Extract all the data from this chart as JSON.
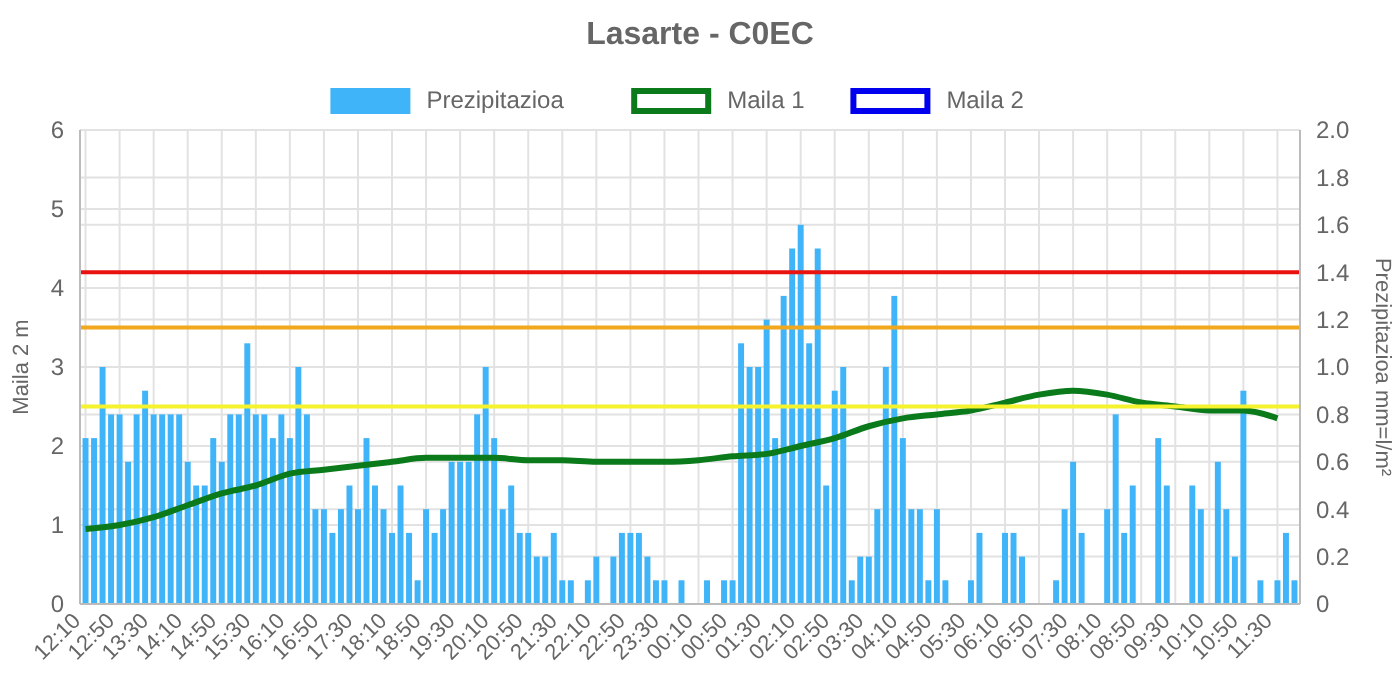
{
  "chart_data": {
    "type": "bar",
    "title": "Lasarte - C0EC",
    "categories": [
      "12:10",
      null,
      null,
      null,
      "12:50",
      null,
      null,
      null,
      "13:30",
      null,
      null,
      null,
      "14:10",
      null,
      null,
      null,
      "14:50",
      null,
      null,
      null,
      "15:30",
      null,
      null,
      null,
      "16:10",
      null,
      null,
      null,
      "16:50",
      null,
      null,
      null,
      "17:30",
      null,
      null,
      null,
      "18:10",
      null,
      null,
      null,
      "18:50",
      null,
      null,
      null,
      "19:30",
      null,
      null,
      null,
      "20:10",
      null,
      null,
      null,
      "20:50",
      null,
      null,
      null,
      "21:30",
      null,
      null,
      null,
      "22:10",
      null,
      null,
      null,
      "22:50",
      null,
      null,
      null,
      "23:30",
      null,
      null,
      null,
      "00:10",
      null,
      null,
      null,
      "00:50",
      null,
      null,
      null,
      "01:30",
      null,
      null,
      null,
      "02:10",
      null,
      null,
      null,
      "02:50",
      null,
      null,
      null,
      "03:30",
      null,
      null,
      null,
      "04:10",
      null,
      null,
      null,
      "04:50",
      null,
      null,
      null,
      "05:30",
      null,
      null,
      null,
      "06:10",
      null,
      null,
      null,
      "06:50",
      null,
      null,
      null,
      "07:30",
      null,
      null,
      null,
      "08:10",
      null,
      null,
      null,
      "08:50",
      null,
      null,
      null,
      "09:30",
      null,
      null,
      null,
      "10:10",
      null,
      null,
      null,
      "10:50",
      null,
      null,
      null,
      "11:30",
      null,
      null
    ],
    "series": [
      {
        "name": "Prezipitazioa",
        "axis": "y2",
        "color": "#40b4f8",
        "values": [
          0.7,
          0.7,
          1.0,
          0.8,
          0.8,
          0.6,
          0.8,
          0.9,
          0.8,
          0.8,
          0.8,
          0.8,
          0.6,
          0.5,
          0.5,
          0.7,
          0.6,
          0.8,
          0.8,
          1.1,
          0.8,
          0.8,
          0.7,
          0.8,
          0.7,
          1.0,
          0.8,
          0.4,
          0.4,
          0.3,
          0.4,
          0.5,
          0.4,
          0.7,
          0.5,
          0.4,
          0.3,
          0.5,
          0.3,
          0.1,
          0.4,
          0.3,
          0.4,
          0.6,
          0.6,
          0.6,
          0.8,
          1.0,
          0.7,
          0.4,
          0.5,
          0.3,
          0.3,
          0.2,
          0.2,
          0.3,
          0.1,
          0.1,
          0,
          0.1,
          0.2,
          0,
          0.2,
          0.3,
          0.3,
          0.3,
          0.2,
          0.1,
          0.1,
          0,
          0.1,
          0,
          0,
          0.1,
          0,
          0.1,
          0.1,
          1.1,
          1.0,
          1.0,
          1.2,
          0.7,
          1.3,
          1.5,
          1.6,
          1.1,
          1.5,
          0.5,
          0.9,
          1.0,
          0.1,
          0.2,
          0.2,
          0.4,
          1.0,
          1.3,
          0.7,
          0.4,
          0.4,
          0.1,
          0.4,
          0.1,
          0,
          0,
          0.1,
          0.3,
          0,
          0,
          0.3,
          0.3,
          0.2,
          0,
          0,
          0,
          0.1,
          0.4,
          0.6,
          0.3,
          0,
          0,
          0.4,
          0.8,
          0.3,
          0.5,
          0,
          0,
          0.7,
          0.5,
          0,
          0,
          0.5,
          0.4,
          0,
          0.6,
          0.4,
          0.2,
          0.9,
          0,
          0.1,
          0,
          0.1,
          0.3,
          0.1
        ]
      },
      {
        "name": "Maila 1",
        "type": "line",
        "color": "#0a7a1a",
        "x": [
          "12:10",
          "12:50",
          "13:30",
          "14:10",
          "14:50",
          "15:30",
          "16:10",
          "16:50",
          "17:30",
          "18:10",
          "18:50",
          "19:30",
          "20:10",
          "20:50",
          "21:30",
          "22:10",
          "22:50",
          "23:30",
          "00:10",
          "00:50",
          "01:30",
          "02:10",
          "02:50",
          "03:30",
          "04:10",
          "04:50",
          "05:30",
          "06:10",
          "06:50",
          "07:30",
          "08:10",
          "08:50",
          "09:30",
          "10:10",
          "10:50",
          "11:30"
        ],
        "values": [
          0.95,
          1.0,
          1.1,
          1.25,
          1.4,
          1.5,
          1.65,
          1.7,
          1.75,
          1.8,
          1.85,
          1.85,
          1.85,
          1.82,
          1.82,
          1.8,
          1.8,
          1.8,
          1.82,
          1.87,
          1.9,
          2.0,
          2.1,
          2.25,
          2.35,
          2.4,
          2.45,
          2.55,
          2.65,
          2.7,
          2.65,
          2.55,
          2.5,
          2.45,
          2.45,
          2.35
        ]
      },
      {
        "name": "Maila 2",
        "type": "line",
        "color": "#0000ee",
        "values": [
          null,
          null,
          null,
          null,
          null,
          null,
          null,
          null,
          null,
          null,
          null,
          null,
          null,
          null,
          null,
          null,
          null,
          null,
          null,
          null,
          null,
          null,
          null,
          null,
          null,
          null,
          null,
          null,
          null,
          null,
          null,
          null,
          null,
          null,
          null,
          null,
          null,
          null,
          null,
          null,
          null,
          null,
          null,
          null,
          null,
          null,
          null,
          null,
          null,
          null,
          null,
          null,
          null,
          null,
          null,
          null,
          null,
          null,
          null,
          null,
          null,
          null,
          null,
          null,
          null,
          null,
          null,
          null,
          null,
          null,
          null,
          null,
          null,
          null,
          null,
          null,
          null,
          null,
          null,
          null,
          null,
          null,
          null,
          null,
          null,
          null,
          null,
          null,
          null,
          null,
          null,
          null,
          null,
          null,
          null,
          null,
          null,
          null,
          null,
          null,
          null,
          null,
          null,
          null,
          null,
          null,
          null,
          null,
          null,
          null,
          null,
          null,
          null,
          null,
          null,
          null,
          null,
          null,
          null,
          null,
          null,
          null,
          null,
          null,
          null,
          null,
          null,
          null,
          null,
          null,
          null,
          null,
          null,
          null,
          null,
          null,
          null,
          null,
          null,
          null,
          null,
          null,
          null
        ]
      }
    ],
    "ylabel": "Maila 2 m",
    "y2label": "Prezipitazioa mm=l/m²",
    "ylim": [
      0,
      6
    ],
    "yticks": [
      0,
      1,
      2,
      3,
      4,
      5,
      6
    ],
    "y2lim": [
      0,
      2.0
    ],
    "y2ticks": [
      {
        "value": 0,
        "label": "0"
      },
      {
        "value": 0.2,
        "label": "0.2"
      },
      {
        "value": 0.4,
        "label": "0.4"
      },
      {
        "value": 0.6,
        "label": "0.6"
      },
      {
        "value": 0.8,
        "label": "0.8"
      },
      {
        "value": 1.0,
        "label": "1.0"
      },
      {
        "value": 1.2,
        "label": "1.2"
      },
      {
        "value": 1.4,
        "label": "1.4"
      },
      {
        "value": 1.6,
        "label": "1.6"
      },
      {
        "value": 1.8,
        "label": "1.8"
      },
      {
        "value": 2.0,
        "label": "2.0"
      }
    ],
    "ref_lines": [
      {
        "axis": "y",
        "value": 4.2,
        "color": "#e8130f"
      },
      {
        "axis": "y",
        "value": 3.5,
        "color": "#f2a81d"
      },
      {
        "axis": "y",
        "value": 2.5,
        "color": "#f5f22e"
      }
    ],
    "grid": true,
    "legend": "top",
    "line_style": "solid",
    "marker": "none"
  }
}
